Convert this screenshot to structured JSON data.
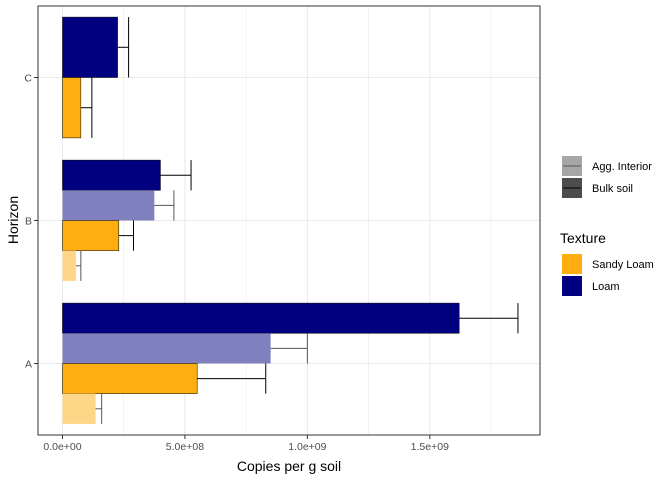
{
  "chart_data": {
    "type": "bar",
    "orientation": "horizontal",
    "xlabel": "Copies per g soil",
    "ylabel": "Horizon",
    "xlim": [
      -100000000,
      1950000000
    ],
    "x_ticks": [
      {
        "value": 0,
        "label": "0.0e+00"
      },
      {
        "value": 500000000,
        "label": "5.0e+08"
      },
      {
        "value": 1000000000,
        "label": "1.0e+09"
      },
      {
        "value": 1500000000,
        "label": "1.5e+09"
      }
    ],
    "categories": [
      "A",
      "B",
      "C"
    ],
    "grid": true,
    "legend_position": "right",
    "colors": {
      "Loam": "#000080",
      "Sandy Loam": "#ffae12",
      "Loam_agg": "#8080bf",
      "Sandy Loam_agg": "#ffd688"
    },
    "series": [
      {
        "texture": "Loam",
        "sample": "Bulk soil",
        "values": [
          1620000000,
          400000000,
          225000000
        ],
        "errors": [
          240000000,
          125000000,
          45000000
        ]
      },
      {
        "texture": "Loam",
        "sample": "Agg. Interior",
        "values": [
          850000000,
          375000000,
          null
        ],
        "errors": [
          150000000,
          80000000,
          null
        ]
      },
      {
        "texture": "Sandy Loam",
        "sample": "Bulk soil",
        "values": [
          550000000,
          230000000,
          75000000
        ],
        "errors": [
          280000000,
          60000000,
          45000000
        ]
      },
      {
        "texture": "Sandy Loam",
        "sample": "Agg. Interior",
        "values": [
          135000000,
          55000000,
          null
        ],
        "errors": [
          25000000,
          20000000,
          null
        ]
      }
    ],
    "legend": {
      "sample_items": [
        "Agg. Interior",
        "Bulk soil"
      ],
      "texture_title": "Texture",
      "texture_items": [
        "Sandy Loam",
        "Loam"
      ]
    }
  }
}
